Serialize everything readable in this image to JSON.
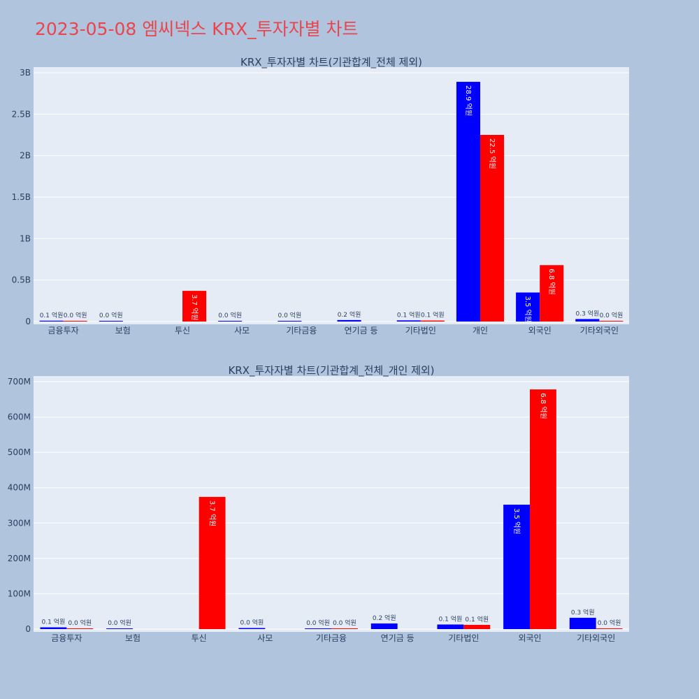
{
  "page_title": "2023-05-08 엠씨넥스 KRX_투자자별 차트",
  "chart_data": [
    {
      "type": "bar",
      "title": "KRX_투자자별 차트(기관합계_전체 제외)",
      "categories": [
        "금융투자",
        "보험",
        "투신",
        "사모",
        "기타금융",
        "연기금 등",
        "기타법인",
        "개인",
        "외국인",
        "기타외국인"
      ],
      "ylim": [
        0,
        3000000000
      ],
      "yticks": [
        0,
        500000000,
        1000000000,
        1500000000,
        2000000000,
        2500000000,
        3000000000
      ],
      "ytick_labels": [
        "0",
        "0.5B",
        "1B",
        "1.5B",
        "2B",
        "2.5B",
        "3B"
      ],
      "grid": true,
      "series": [
        {
          "color": "#0000ff",
          "values": [
            10000000,
            3000000,
            null,
            3000000,
            1000000,
            18000000,
            14000000,
            2890000000,
            350000000,
            30000000
          ],
          "labels": [
            "0.1 억원",
            "0.0 억원",
            "",
            "0.0 억원",
            "0.0 억원",
            "0.2 억원",
            "0.1 억원",
            "28.9 억원",
            "3.5 억원",
            "0.3 억원"
          ]
        },
        {
          "color": "#ff0000",
          "values": [
            1000000,
            null,
            370000000,
            null,
            null,
            null,
            12000000,
            2250000000,
            680000000,
            2000000
          ],
          "labels": [
            "0.0 억원",
            "",
            "3.7 억원",
            "",
            "",
            "",
            "0.1 억원",
            "22.5 억원",
            "6.8 억원",
            "0.0 억원"
          ]
        }
      ]
    },
    {
      "type": "bar",
      "title": "KRX_투자자별 차트(기관합계_전체_개인 제외)",
      "categories": [
        "금융투자",
        "보험",
        "투신",
        "사모",
        "기타금융",
        "연기금 등",
        "기타법인",
        "외국인",
        "기타외국인"
      ],
      "ylim": [
        0,
        700000000
      ],
      "yticks": [
        0,
        100000000,
        200000000,
        300000000,
        400000000,
        500000000,
        600000000,
        700000000
      ],
      "ytick_labels": [
        "0",
        "100M",
        "200M",
        "300M",
        "400M",
        "500M",
        "600M",
        "700M"
      ],
      "grid": true,
      "series": [
        {
          "color": "#0000ff",
          "values": [
            5000000,
            1000000,
            null,
            3000000,
            1000000,
            16000000,
            13000000,
            352000000,
            32000000
          ],
          "labels": [
            "0.1 억원",
            "0.0 억원",
            "",
            "0.0 억원",
            "0.0 억원",
            "0.2 억원",
            "0.1 억원",
            "3.5 억원",
            "0.3 억원"
          ]
        },
        {
          "color": "#ff0000",
          "values": [
            1000000,
            null,
            374000000,
            null,
            1000000,
            null,
            12000000,
            678000000,
            1000000
          ],
          "labels": [
            "0.0 억원",
            "",
            "3.7 억원",
            "",
            "0.0 억원",
            "",
            "0.1 억원",
            "6.8 억원",
            "0.0 억원"
          ]
        }
      ]
    }
  ]
}
